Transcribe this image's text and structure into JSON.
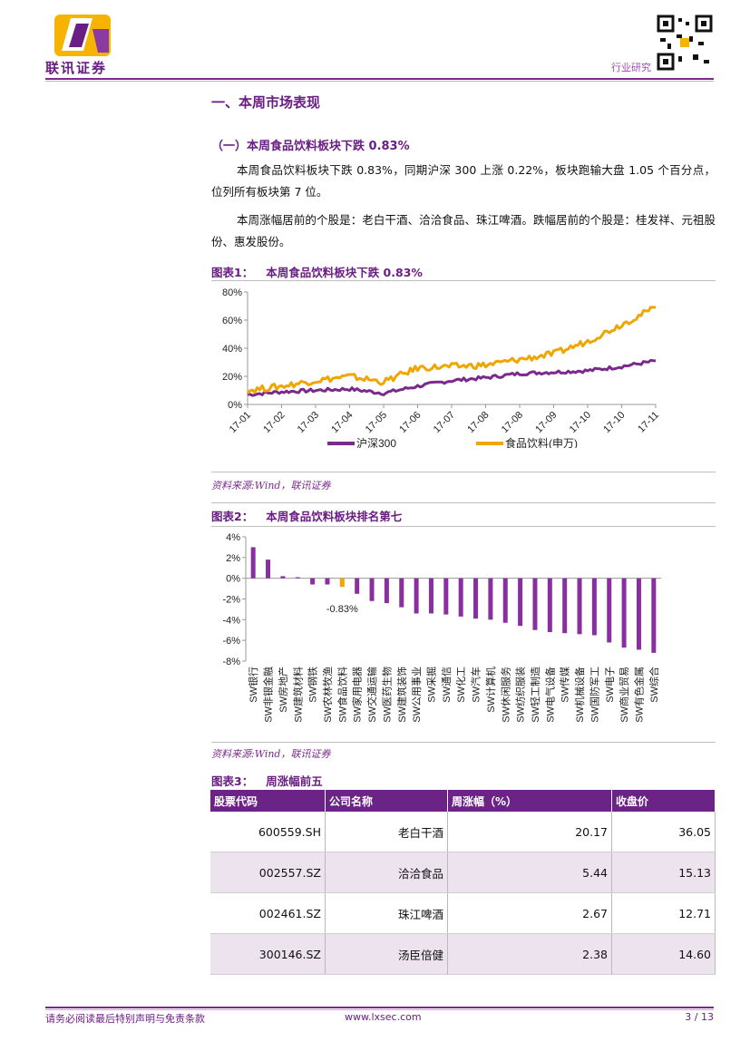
{
  "header": {
    "logo_text": "联讯证券",
    "tag": "行业研究",
    "qr": "qr-code"
  },
  "section": {
    "title": "一、本周市场表现",
    "subtitle": "（一）本周食品饮料板块下跌 0.83%",
    "para1": "本周食品饮料板块下跌 0.83%，同期沪深 300 上涨 0.22%，板块跑输大盘 1.05 个百分点，位列所有板块第 7 位。",
    "para2": "本周涨幅居前的个股是：老白干酒、洽洽食品、珠江啤酒。跌幅居前的个股是：桂发祥、元祖股份、惠发股份。"
  },
  "figure1": {
    "label": "图表1：",
    "title": "本周食品饮料板块下跌 0.83%",
    "source": "资料来源:Wind，联讯证券"
  },
  "figure2": {
    "label": "图表2：",
    "title": "本周食品饮料板块排名第七",
    "source": "资料来源:Wind，联讯证券"
  },
  "figure3": {
    "label": "图表3：",
    "title": "周涨幅前五"
  },
  "chart_data": [
    {
      "type": "line",
      "x": [
        "17-01",
        "17-02",
        "17-03",
        "17-04",
        "17-05",
        "17-06",
        "17-07",
        "17-08",
        "17-08",
        "17-09",
        "17-10",
        "17-10",
        "17-11"
      ],
      "ylim": [
        0,
        80
      ],
      "yticks": [
        "0%",
        "20%",
        "40%",
        "60%",
        "80%"
      ],
      "series": [
        {
          "name": "沪深300",
          "color": "#7b2a8c",
          "values": [
            7,
            9,
            10,
            11,
            8,
            13,
            17,
            19,
            22,
            23,
            24,
            27,
            31
          ]
        },
        {
          "name": "食品饮料(申万)",
          "color": "#f0a500",
          "values": [
            10,
            13,
            17,
            20,
            16,
            26,
            27,
            28,
            32,
            36,
            45,
            57,
            69
          ]
        }
      ]
    },
    {
      "type": "bar",
      "ylim": [
        -8,
        4
      ],
      "yticks": [
        "4%",
        "2%",
        "0%",
        "-2%",
        "-4%",
        "-6%",
        "-8%"
      ],
      "highlight_label": "-0.83%",
      "categories": [
        "SW银行",
        "SW非银金融",
        "SW房地产",
        "SW建筑材料",
        "SW钢铁",
        "SW农林牧渔",
        "SW食品饮料",
        "SW家用电器",
        "SW交通运输",
        "SW医药生物",
        "SW建筑装饰",
        "SW公用事业",
        "SW采掘",
        "SW通信",
        "SW化工",
        "SW汽车",
        "SW计算机",
        "SW休闲服务",
        "SW纺织服装",
        "SW轻工制造",
        "SW电气设备",
        "SW传媒",
        "SW机械设备",
        "SW国防军工",
        "SW电子",
        "SW商业贸易",
        "SW有色金属",
        "SW综合"
      ],
      "values": [
        3.0,
        1.8,
        0.2,
        0.1,
        -0.6,
        -0.6,
        -0.83,
        -1.5,
        -2.2,
        -2.4,
        -2.8,
        -3.4,
        -3.4,
        -3.5,
        -3.7,
        -3.9,
        -4.0,
        -4.3,
        -4.6,
        -5.0,
        -5.2,
        -5.3,
        -5.4,
        -5.5,
        -6.2,
        -6.7,
        -6.9,
        -7.2
      ],
      "colors": {
        "normal": "#8a2fa0",
        "highlight": "#f0a500"
      }
    }
  ],
  "table": {
    "headers": [
      "股票代码",
      "公司名称",
      "周涨幅（%）",
      "收盘价"
    ],
    "rows": [
      [
        "600559.SH",
        "老白干酒",
        "20.17",
        "36.05"
      ],
      [
        "002557.SZ",
        "洽洽食品",
        "5.44",
        "15.13"
      ],
      [
        "002461.SZ",
        "珠江啤酒",
        "2.67",
        "12.71"
      ],
      [
        "300146.SZ",
        "汤臣倍健",
        "2.38",
        "14.60"
      ]
    ]
  },
  "footer": {
    "disclaimer": "请务必阅读最后特别声明与免责条款",
    "url": "www.lxsec.com",
    "page": "3 / 13"
  }
}
